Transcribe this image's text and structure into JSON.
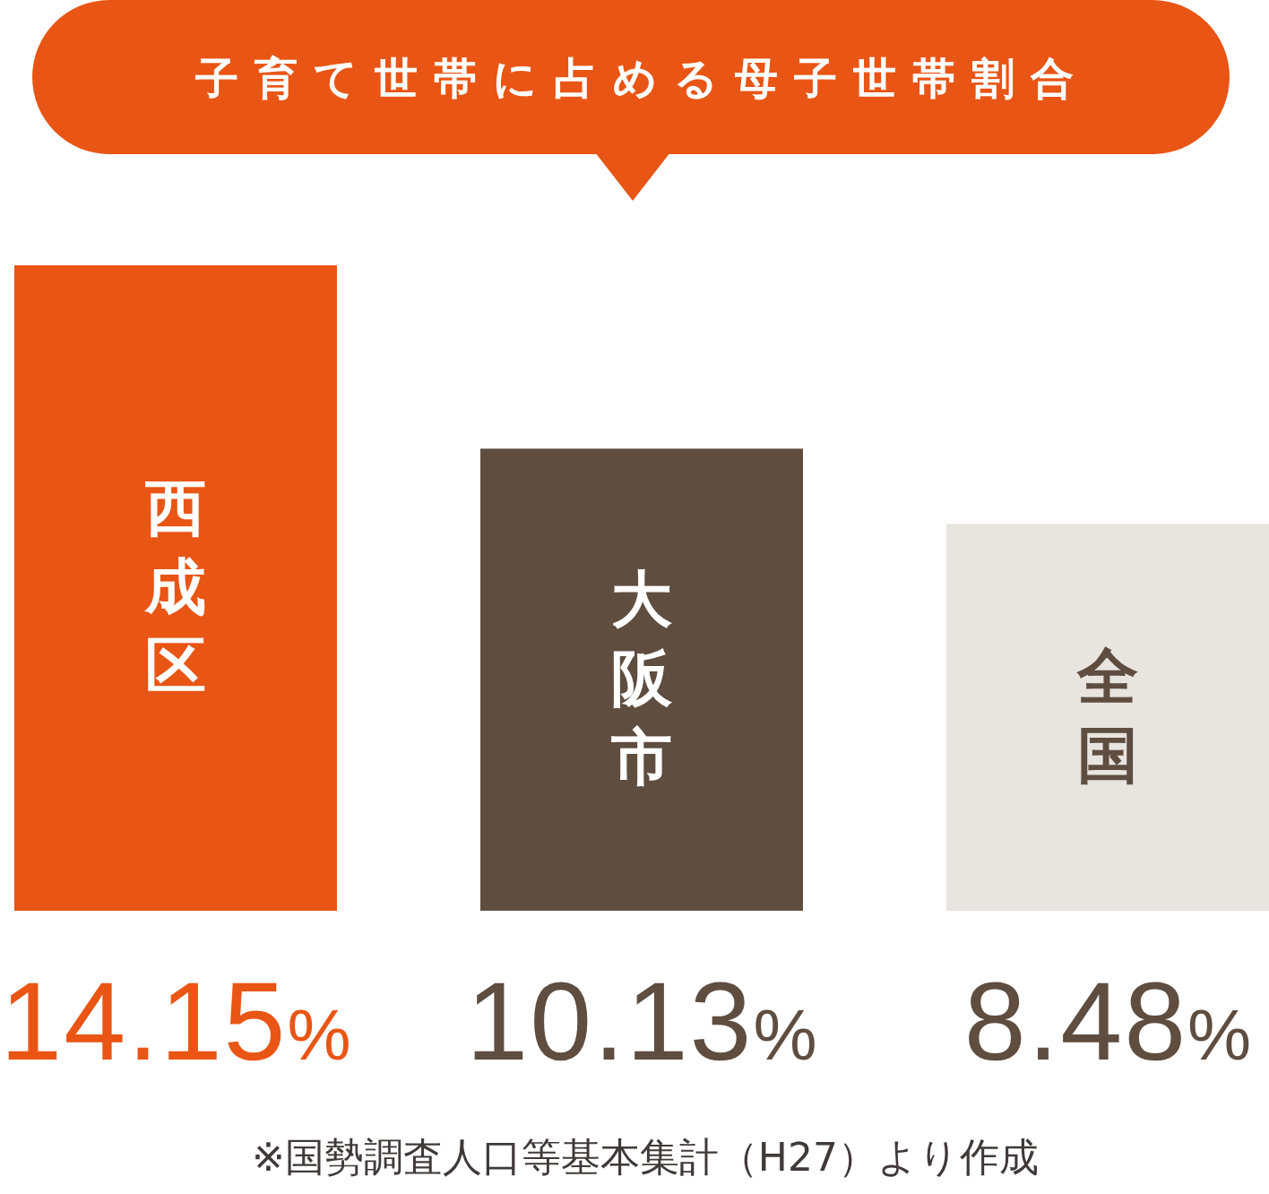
{
  "chart_data": {
    "type": "bar",
    "title": "子育て世帯に占める母子世帯割合",
    "categories": [
      "西成区",
      "大阪市",
      "全国"
    ],
    "values": [
      14.15,
      10.13,
      8.48
    ],
    "colors": [
      "#e95514",
      "#5f4d40",
      "#e8e4e0"
    ],
    "value_labels": [
      "14.15%",
      "10.13%",
      "8.48%"
    ],
    "tick_labels": "x",
    "annotations": [
      "※国勢調査人口等基本集計（H27）より作成"
    ]
  }
}
